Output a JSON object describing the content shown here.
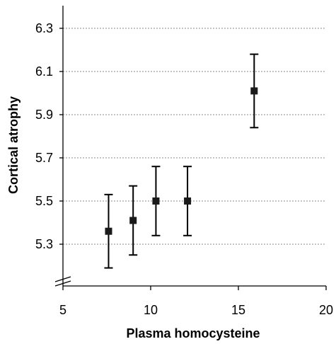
{
  "chart_data": {
    "type": "scatter",
    "title": "",
    "xlabel": "Plasma homocysteine",
    "ylabel": "Cortical atrophy",
    "xlim": [
      5,
      20
    ],
    "ylim": [
      5.1,
      6.4
    ],
    "x_axis_break": true,
    "x_ticks": [
      5,
      10,
      15,
      20
    ],
    "y_ticks": [
      5.3,
      5.5,
      5.7,
      5.9,
      6.1,
      6.3
    ],
    "x_tick_labels": [
      "5",
      "10",
      "15",
      "20"
    ],
    "y_tick_labels": [
      "5.3",
      "5.5",
      "5.7",
      "5.9",
      "6.1",
      "6.3"
    ],
    "grid": {
      "horizontal": true,
      "style": "dotted"
    },
    "marker": "square",
    "colors": {
      "marker": "#1a1a1a",
      "errorbar": "#000000",
      "grid": "#8a8a8a",
      "axis": "#000000"
    },
    "points": [
      {
        "x": 7.6,
        "y": 5.36,
        "y_lower": 5.19,
        "y_upper": 5.53
      },
      {
        "x": 9.0,
        "y": 5.41,
        "y_lower": 5.25,
        "y_upper": 5.57
      },
      {
        "x": 10.3,
        "y": 5.5,
        "y_lower": 5.34,
        "y_upper": 5.66
      },
      {
        "x": 12.1,
        "y": 5.5,
        "y_lower": 5.34,
        "y_upper": 5.66
      },
      {
        "x": 15.9,
        "y": 6.01,
        "y_lower": 5.84,
        "y_upper": 6.18
      }
    ]
  }
}
